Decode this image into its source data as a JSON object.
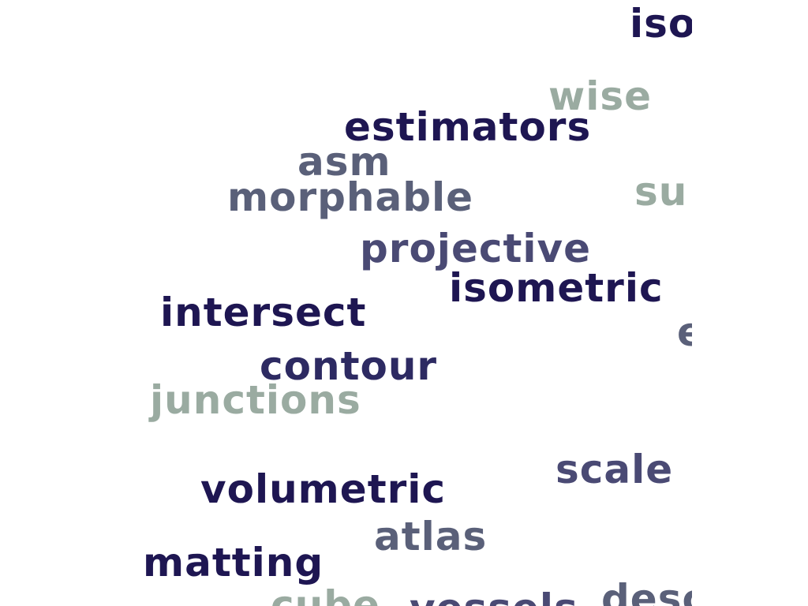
{
  "word_cloud": {
    "words": [
      {
        "text": "iso",
        "color": "#1e1652"
      },
      {
        "text": "wise",
        "color": "#9aaba1"
      },
      {
        "text": "estimators",
        "color": "#1e1652"
      },
      {
        "text": "asm",
        "color": "#5a6079"
      },
      {
        "text": "morphable",
        "color": "#5a6079"
      },
      {
        "text": "su",
        "color": "#9aaba1"
      },
      {
        "text": "projective",
        "color": "#4a4a74"
      },
      {
        "text": "isometric",
        "color": "#1e1652"
      },
      {
        "text": "intersect",
        "color": "#1e1652"
      },
      {
        "text": "e",
        "color": "#5a6079"
      },
      {
        "text": "contour",
        "color": "#2d2a62"
      },
      {
        "text": "junctions",
        "color": "#9aaba1"
      },
      {
        "text": "scale",
        "color": "#4a4a74"
      },
      {
        "text": "volumetric",
        "color": "#1e1652"
      },
      {
        "text": "atlas",
        "color": "#5a6079"
      },
      {
        "text": "matting",
        "color": "#1e1652"
      },
      {
        "text": "cube",
        "color": "#9aaba1"
      },
      {
        "text": "vessels",
        "color": "#4a4a74"
      },
      {
        "text": "desc",
        "color": "#5a6079"
      }
    ]
  }
}
